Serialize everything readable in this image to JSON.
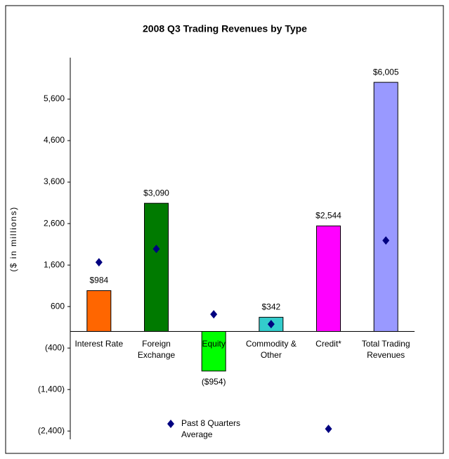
{
  "chart_data": {
    "type": "bar",
    "title": "2008 Q3 Trading Revenues by Type",
    "y_label": "($ in millions)",
    "categories": [
      "Interest Rate",
      "Foreign Exchange",
      "Equity",
      "Commodity & Other",
      "Credit*",
      "Total Trading Revenues"
    ],
    "values": [
      984,
      3090,
      -954,
      342,
      2544,
      6005
    ],
    "value_labels": [
      "$984",
      "$3,090",
      "($954)",
      "$342",
      "$2,544",
      "$6,005"
    ],
    "colors": [
      "#ff6600",
      "#007a00",
      "#00ff00",
      "#33cccc",
      "#ff00ff",
      "#9999ff"
    ],
    "markers": {
      "name": "Past 8 Quarters Average",
      "color": "#000080",
      "values": [
        1668,
        1990,
        414,
        176,
        -2347,
        2193
      ]
    },
    "ylim": [
      -2600,
      6600
    ],
    "yticks": [
      {
        "value": -2400,
        "label": "(2,400)"
      },
      {
        "value": -1400,
        "label": "(1,400)"
      },
      {
        "value": -400,
        "label": "(400)"
      },
      600,
      {
        "value": 1600,
        "label": "1,600"
      },
      {
        "value": 2600,
        "label": "2,600"
      },
      {
        "value": 3600,
        "label": "3,600"
      },
      {
        "value": 4600,
        "label": "4,600"
      },
      {
        "value": 5600,
        "label": "5,600"
      }
    ],
    "grid": false
  }
}
